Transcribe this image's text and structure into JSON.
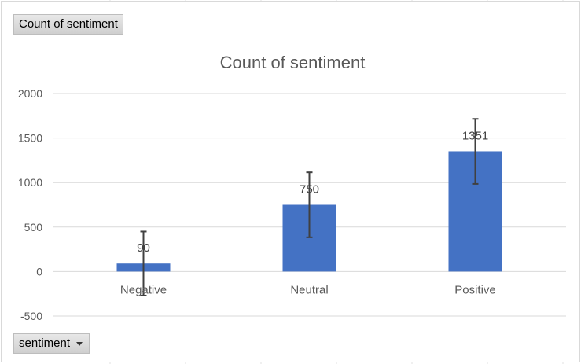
{
  "pivot": {
    "value_field_label": "Count of sentiment",
    "axis_field_label": "sentiment"
  },
  "icons": {
    "axis_field_dropdown": "chevron-down-icon"
  },
  "colors": {
    "bar": "#4472c4",
    "gridline": "#d9d9d9",
    "axis_text": "#595959",
    "error_bar": "#404040"
  },
  "chart_data": {
    "type": "bar",
    "title": "Count of sentiment",
    "categories": [
      "Negative",
      "Neutral",
      "Positive"
    ],
    "values": [
      90,
      750,
      1351
    ],
    "data_labels": [
      "90",
      "750",
      "1351"
    ],
    "error_bars": [
      [
        -270,
        450
      ],
      [
        385,
        1115
      ],
      [
        985,
        1715
      ]
    ],
    "y_ticks": [
      -500,
      0,
      500,
      1000,
      1500,
      2000
    ],
    "y_tick_labels": [
      "-500",
      "0",
      "500",
      "1000",
      "1500",
      "2000"
    ],
    "ylim": [
      -500,
      2000
    ],
    "grid": true,
    "legend": "none"
  }
}
